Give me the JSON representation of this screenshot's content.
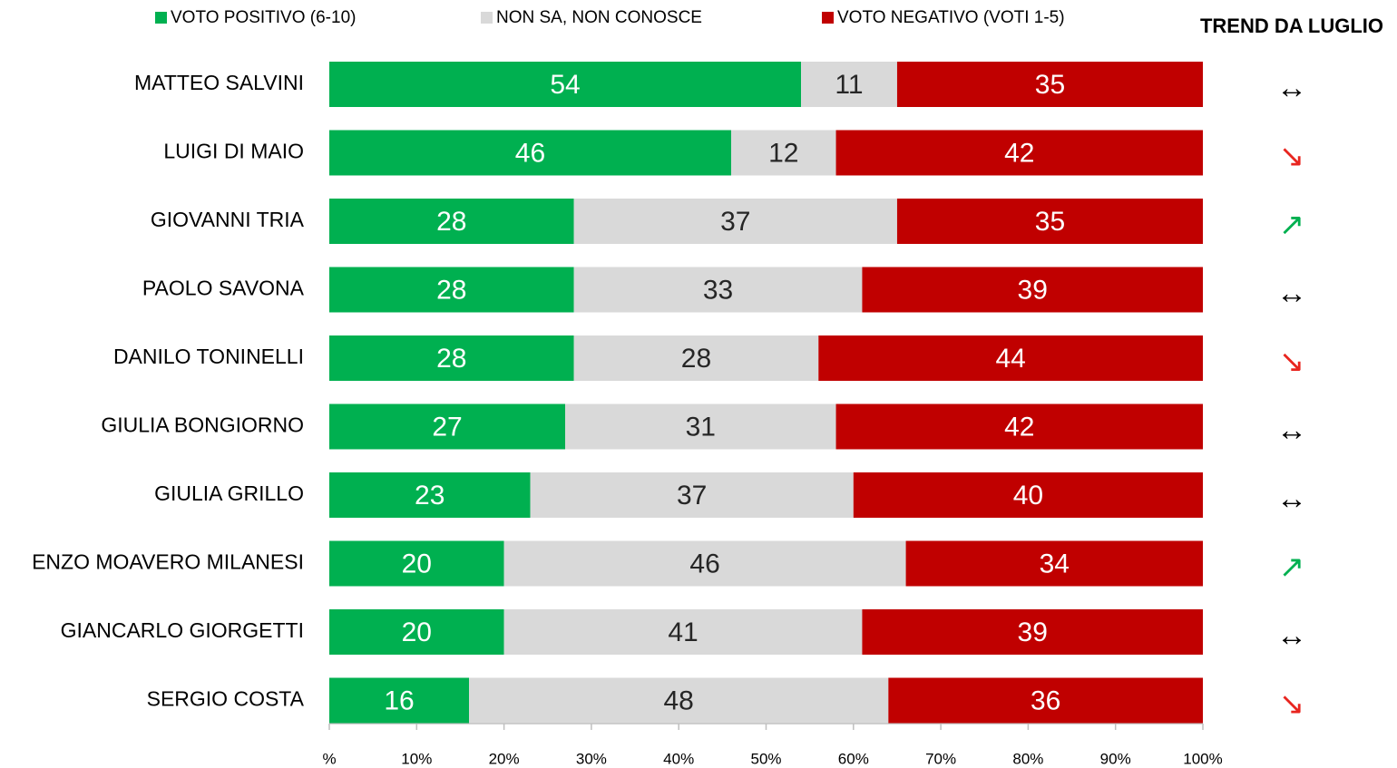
{
  "chart_data": {
    "type": "stacked-bar-horizontal",
    "categories": [
      "MATTEO SALVINI",
      "LUIGI DI MAIO",
      "GIOVANNI TRIA",
      "PAOLO SAVONA",
      "DANILO TONINELLI",
      "GIULIA BONGIORNO",
      "GIULIA GRILLO",
      "ENZO MOAVERO MILANESI",
      "GIANCARLO GIORGETTI",
      "SERGIO COSTA"
    ],
    "series": [
      {
        "name": "VOTO POSITIVO (6-10)",
        "color": "#00b050",
        "values": [
          54,
          46,
          28,
          28,
          28,
          27,
          23,
          20,
          20,
          16
        ]
      },
      {
        "name": "NON SA, NON CONOSCE",
        "color": "#d9d9d9",
        "values": [
          11,
          12,
          37,
          33,
          28,
          31,
          37,
          46,
          41,
          48
        ]
      },
      {
        "name": "VOTO NEGATIVO (VOTI 1-5)",
        "color": "#c00000",
        "values": [
          35,
          42,
          35,
          39,
          44,
          42,
          40,
          34,
          39,
          36
        ]
      }
    ],
    "xlim": [
      0,
      100
    ],
    "xticks": [
      {
        "value": 0,
        "label": "%"
      },
      {
        "value": 10,
        "label": "10%"
      },
      {
        "value": 20,
        "label": "20%"
      },
      {
        "value": 30,
        "label": "30%"
      },
      {
        "value": 40,
        "label": "40%"
      },
      {
        "value": 50,
        "label": "50%"
      },
      {
        "value": 60,
        "label": "60%"
      },
      {
        "value": 70,
        "label": "70%"
      },
      {
        "value": 80,
        "label": "80%"
      },
      {
        "value": 90,
        "label": "90%"
      },
      {
        "value": 100,
        "label": "100%"
      }
    ],
    "trend_title": "TREND DA LUGLIO",
    "trends": [
      "↔",
      "↘",
      "↗",
      "↔",
      "↘",
      "↔",
      "↔",
      "↗",
      "↔",
      "↘"
    ],
    "trend_colors": [
      "#000000",
      "#e8251f",
      "#00b050",
      "#000000",
      "#e8251f",
      "#000000",
      "#000000",
      "#00b050",
      "#000000",
      "#e8251f"
    ]
  }
}
